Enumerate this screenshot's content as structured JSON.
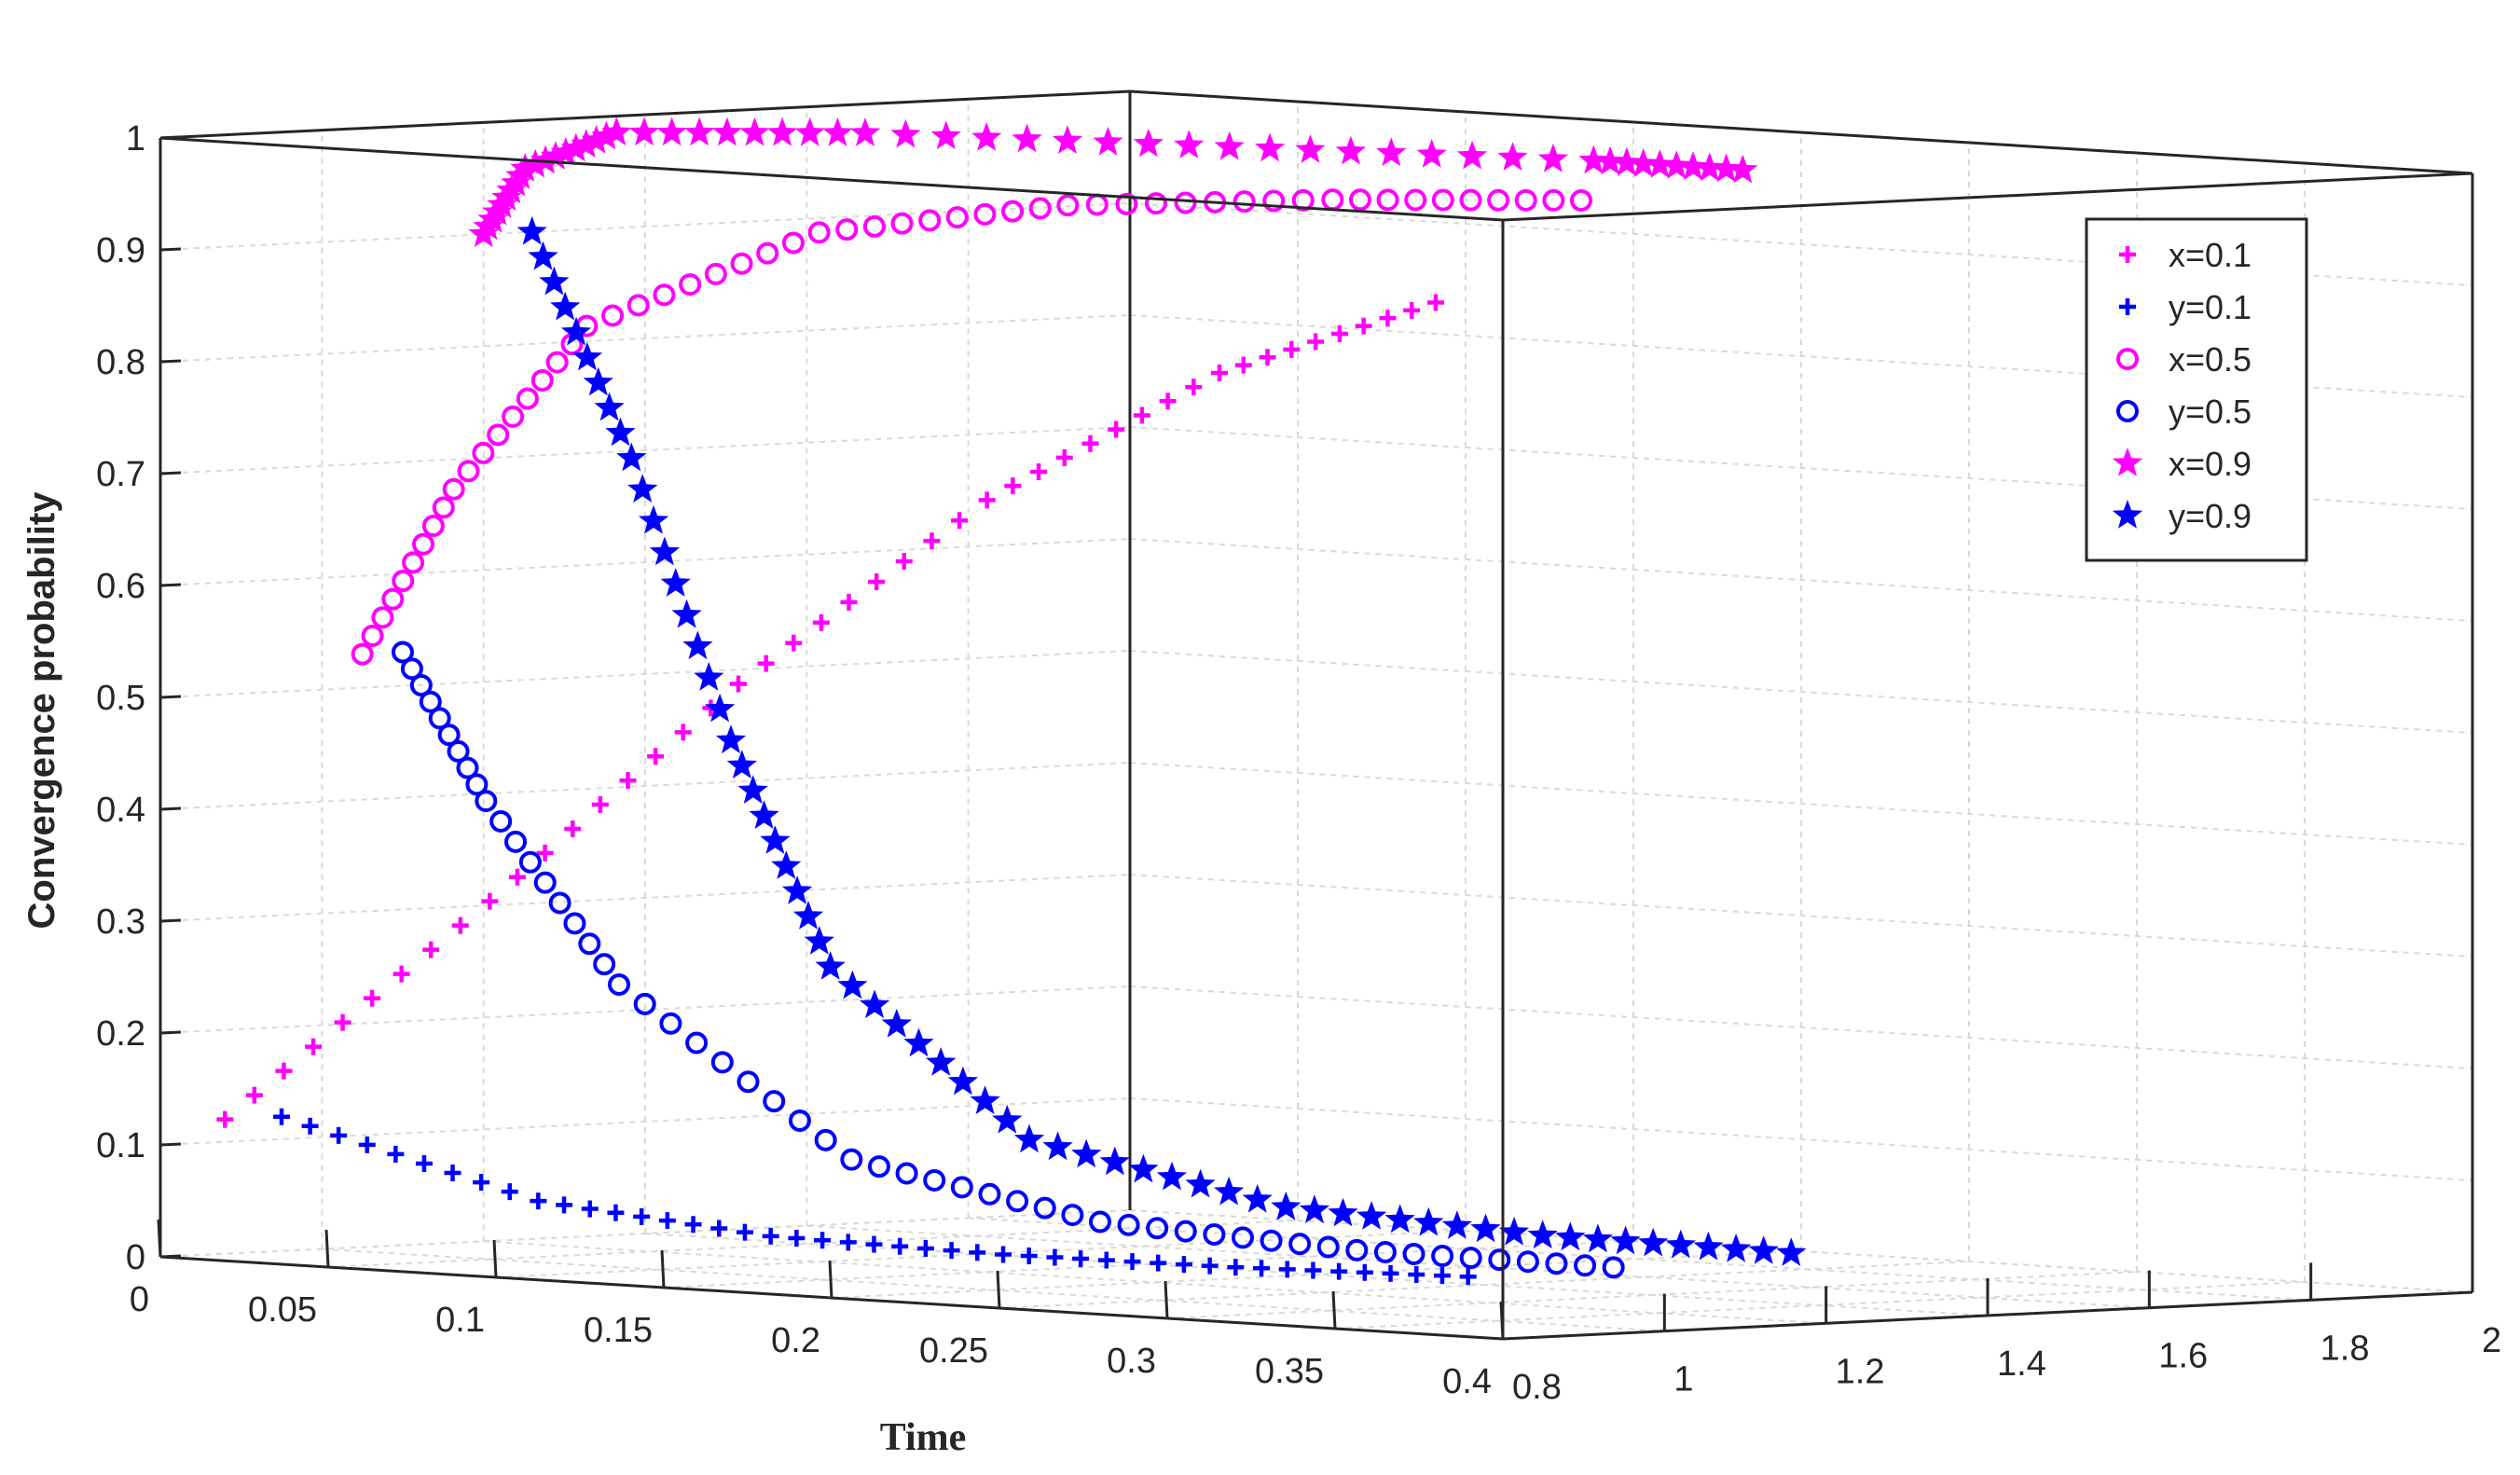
{
  "chart_data": {
    "type": "scatter3d",
    "title": "",
    "xlabel": "Time",
    "ylabel": "Convergence probability",
    "zlabel": "",
    "x_ticks": [
      "0",
      "0.05",
      "0.1",
      "0.15",
      "0.2",
      "0.25",
      "0.3",
      "0.35",
      "0.4"
    ],
    "y_ticks": [
      "0.8",
      "1",
      "1.2",
      "1.4",
      "1.6",
      "1.8",
      "2"
    ],
    "z_ticks": [
      "0",
      "0.1",
      "0.2",
      "0.3",
      "0.4",
      "0.5",
      "0.6",
      "0.7",
      "0.8",
      "0.9",
      "1"
    ],
    "xlim": [
      0,
      0.4
    ],
    "ylim": [
      0.8,
      2
    ],
    "zlim": [
      0,
      1
    ],
    "legend_position": "top-right",
    "colors": {
      "magenta": "#ff00ff",
      "blue": "#0000ff",
      "axes": "#262626",
      "grid": "#d9d9d9"
    },
    "series": [
      {
        "name": "x=0.1",
        "marker": "plus",
        "color": "#ff00ff",
        "points": [
          [
            0.0,
            0.88,
            0.12
          ],
          [
            0.05,
            1.0,
            0.32
          ],
          [
            0.1,
            1.1,
            0.52
          ],
          [
            0.15,
            1.2,
            0.69
          ],
          [
            0.2,
            1.28,
            0.81
          ],
          [
            0.25,
            1.34,
            0.88
          ]
        ]
      },
      {
        "name": "y=0.1",
        "marker": "plus",
        "color": "#0000ff",
        "points": [
          [
            0.0,
            0.95,
            0.12
          ],
          [
            0.05,
            1.06,
            0.05
          ],
          [
            0.1,
            1.14,
            0.025
          ],
          [
            0.15,
            1.22,
            0.015
          ],
          [
            0.2,
            1.3,
            0.01
          ],
          [
            0.25,
            1.38,
            0.008
          ]
        ]
      },
      {
        "name": "x=0.5",
        "marker": "circle",
        "color": "#ff00ff",
        "points": [
          [
            0.0,
            1.05,
            0.53
          ],
          [
            0.02,
            1.08,
            0.68
          ],
          [
            0.05,
            1.12,
            0.83
          ],
          [
            0.1,
            1.2,
            0.92
          ],
          [
            0.15,
            1.3,
            0.95
          ],
          [
            0.2,
            1.42,
            0.96
          ],
          [
            0.25,
            1.52,
            0.965
          ]
        ]
      },
      {
        "name": "y=0.5",
        "marker": "circle",
        "color": "#0000ff",
        "points": [
          [
            0.0,
            1.1,
            0.53
          ],
          [
            0.02,
            1.12,
            0.4
          ],
          [
            0.05,
            1.16,
            0.24
          ],
          [
            0.1,
            1.24,
            0.09
          ],
          [
            0.15,
            1.34,
            0.04
          ],
          [
            0.2,
            1.45,
            0.02
          ],
          [
            0.25,
            1.56,
            0.01
          ]
        ]
      },
      {
        "name": "x=0.9",
        "marker": "star",
        "color": "#ff00ff",
        "points": [
          [
            0.0,
            1.2,
            0.9
          ],
          [
            0.01,
            1.21,
            0.96
          ],
          [
            0.03,
            1.24,
            0.995
          ],
          [
            0.08,
            1.34,
            1.0
          ],
          [
            0.15,
            1.5,
            0.995
          ],
          [
            0.22,
            1.66,
            0.99
          ],
          [
            0.25,
            1.72,
            0.985
          ]
        ]
      },
      {
        "name": "y=0.9",
        "marker": "star",
        "color": "#0000ff",
        "points": [
          [
            0.0,
            1.26,
            0.9
          ],
          [
            0.02,
            1.3,
            0.7
          ],
          [
            0.04,
            1.34,
            0.45
          ],
          [
            0.06,
            1.38,
            0.25
          ],
          [
            0.1,
            1.46,
            0.1
          ],
          [
            0.15,
            1.57,
            0.045
          ],
          [
            0.2,
            1.68,
            0.025
          ],
          [
            0.25,
            1.78,
            0.015
          ]
        ]
      }
    ]
  }
}
